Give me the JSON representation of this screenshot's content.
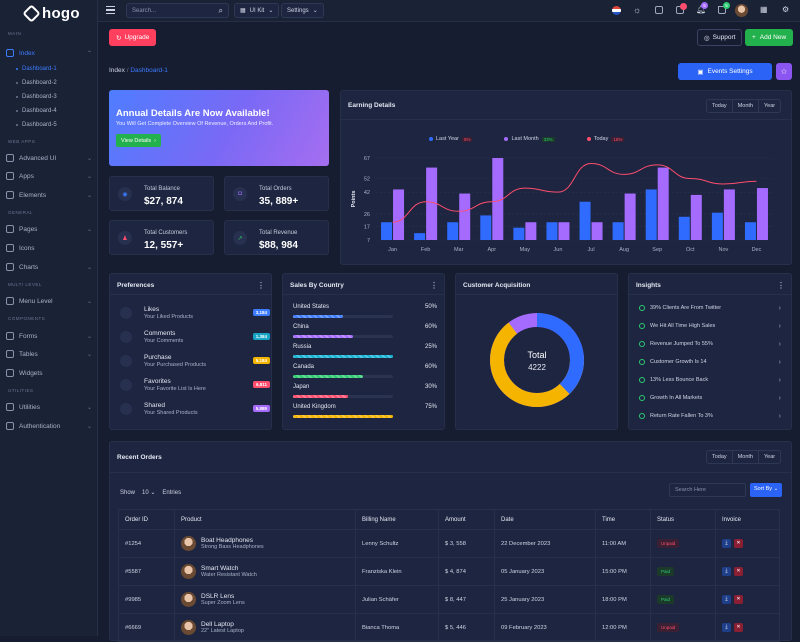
{
  "brand": "hogo",
  "sidebar": {
    "sections": [
      {
        "label": "MAIN"
      },
      {
        "label": "WEB APPS"
      },
      {
        "label": "GENERAL"
      },
      {
        "label": "MULTI LEVEL"
      },
      {
        "label": "COMPONENTS"
      },
      {
        "label": "UTILITIES"
      }
    ],
    "items": [
      {
        "label": "Index",
        "icon": "monitor-icon"
      },
      {
        "label": "Advanced UI",
        "icon": "layers-icon"
      },
      {
        "label": "Apps",
        "icon": "apps-icon"
      },
      {
        "label": "Elements",
        "icon": "box-icon"
      },
      {
        "label": "Pages",
        "icon": "file-icon"
      },
      {
        "label": "Icons",
        "icon": "grid-icon"
      },
      {
        "label": "Charts",
        "icon": "chart-icon"
      },
      {
        "label": "Menu Level",
        "icon": "menu-icon"
      },
      {
        "label": "Forms",
        "icon": "form-icon"
      },
      {
        "label": "Tables",
        "icon": "table-icon"
      },
      {
        "label": "Widgets",
        "icon": "widget-icon"
      },
      {
        "label": "Utilities",
        "icon": "tool-icon"
      },
      {
        "label": "Authentication",
        "icon": "lock-icon"
      }
    ],
    "subitems": [
      "Dashboard-1",
      "Dashboard-2",
      "Dashboard-3",
      "Dashboard-4",
      "Dashboard-5"
    ]
  },
  "topbar": {
    "search_placeholder": "Search...",
    "uikit": "UI Kit",
    "settings": "Settings",
    "notif_count": "5",
    "cart_count": "5"
  },
  "actions": {
    "upgrade": "Upgrade",
    "support": "Support",
    "add_new": "Add New",
    "events": "Events Settings"
  },
  "breadcrumb": {
    "root": "Index",
    "current": "Dashboard-1"
  },
  "banner": {
    "title": "Annual Details Are Now Available!",
    "subtitle": "You Will Get Complete Overview Of Revenue, Orders And Profit.",
    "button": "View Details"
  },
  "stats": [
    {
      "label": "Total Balance",
      "value": "$27, 874",
      "color": "#3d7bff"
    },
    {
      "label": "Total Orders",
      "value": "35, 889+",
      "color": "#a56bff"
    },
    {
      "label": "Total Customers",
      "value": "12, 557+",
      "color": "#ff4d6d"
    },
    {
      "label": "Total Revenue",
      "value": "$88, 984",
      "color": "#2ecc71"
    }
  ],
  "earning": {
    "title": "Earning Details",
    "tabs": [
      "Today",
      "Month",
      "Year"
    ],
    "legend": [
      {
        "label": "Last Year",
        "pct": "5%",
        "color": "#2f6bff"
      },
      {
        "label": "Last Month",
        "pct": "33%",
        "color": "#a56bff"
      },
      {
        "label": "Today",
        "pct": "15%",
        "color": "#ff4d6d"
      }
    ]
  },
  "chart_data": {
    "type": "bar",
    "ylabel": "Points",
    "yticks": [
      7,
      17,
      26,
      42,
      52,
      67
    ],
    "ylim": [
      7,
      67
    ],
    "categories": [
      "Jan",
      "Feb",
      "Mar",
      "Apr",
      "May",
      "Jun",
      "Jul",
      "Aug",
      "Sep",
      "Oct",
      "Nov",
      "Dec"
    ],
    "series": [
      {
        "name": "Last Year",
        "type": "bar",
        "color": "#2f6bff",
        "values": [
          20,
          12,
          20,
          25,
          16,
          20,
          35,
          20,
          44,
          24,
          27,
          20
        ]
      },
      {
        "name": "Last Month",
        "type": "bar",
        "color": "#a56bff",
        "values": [
          44,
          60,
          41,
          67,
          20,
          20,
          20,
          41,
          60,
          40,
          44,
          45
        ]
      },
      {
        "name": "Today",
        "type": "line",
        "color": "#ff4d6d",
        "values": [
          20,
          35,
          28,
          35,
          45,
          42,
          63,
          55,
          62,
          52,
          48,
          50
        ]
      }
    ]
  },
  "preferences": {
    "title": "Preferences",
    "items": [
      {
        "title": "Likes",
        "sub": "Your Liked Products",
        "badge": "3,184",
        "color": "#3d7bff"
      },
      {
        "title": "Comments",
        "sub": "Your Comments",
        "badge": "1,384",
        "color": "#16a3c4"
      },
      {
        "title": "Purchase",
        "sub": "Your Purchased Products",
        "badge": "5,184",
        "color": "#f5b400"
      },
      {
        "title": "Favorites",
        "sub": "Your Favorite List Is Here",
        "badge": "6,811",
        "color": "#ff4d6d"
      },
      {
        "title": "Shared",
        "sub": "Your Shared Products",
        "badge": "5,889",
        "color": "#a56bff"
      }
    ]
  },
  "countries": {
    "title": "Sales By Country",
    "items": [
      {
        "name": "United States",
        "pct": "50%",
        "value": 50,
        "color": "#3d7bff"
      },
      {
        "name": "China",
        "pct": "60%",
        "value": 60,
        "color": "#a56bff"
      },
      {
        "name": "Russia",
        "pct": "25%",
        "value": 25,
        "color": "#16b3d4"
      },
      {
        "name": "Canada",
        "pct": "60%",
        "value": 60,
        "color": "#2ecc71"
      },
      {
        "name": "Japan",
        "pct": "30%",
        "value": 30,
        "color": "#ff4d6d"
      },
      {
        "name": "United Kingdom",
        "pct": "75%",
        "value": 75,
        "color": "#f5b400"
      }
    ]
  },
  "acquisition": {
    "title": "Customer Acquisition",
    "total_label": "Total",
    "total_value": "4222",
    "segments": [
      {
        "value": 38,
        "color": "#2f6bff"
      },
      {
        "value": 28,
        "color": "#f5b400"
      },
      {
        "value": 34,
        "color": "#a56bff"
      }
    ]
  },
  "insights": {
    "title": "Insights",
    "items": [
      {
        "text": "39% Clients Are From Twitter"
      },
      {
        "text": "We Hit All Time High Sales"
      },
      {
        "text": "Revenue Jumped To 55%"
      },
      {
        "text": "Customer Growth Is 14"
      },
      {
        "text": "13% Less Bounce Back"
      },
      {
        "text": "Growth In All Markets"
      },
      {
        "text": "Return Rate Fallen To 3%"
      }
    ]
  },
  "orders": {
    "title": "Recent Orders",
    "tabs": [
      "Today",
      "Month",
      "Year"
    ],
    "show": "Show",
    "entries_value": "10",
    "entries": "Entries",
    "search_placeholder": "Search Here",
    "sort": "Sort By",
    "columns": [
      "Order ID",
      "Product",
      "Billing Name",
      "Amount",
      "Date",
      "Time",
      "Status",
      "Invoice"
    ],
    "rows": [
      {
        "id": "#1254",
        "product": "Boat Headphones",
        "desc": "Strong Bass Headphones",
        "billing": "Lenny Schultz",
        "amount": "$ 3, 558",
        "date": "22 December 2023",
        "time": "11:00 AM",
        "status": "Unpaid"
      },
      {
        "id": "#5587",
        "product": "Smart Watch",
        "desc": "Water Resistant Watch",
        "billing": "Franziska Klein",
        "amount": "$ 4, 874",
        "date": "05 January 2023",
        "time": "15:00 PM",
        "status": "Paid"
      },
      {
        "id": "#9985",
        "product": "DSLR Lens",
        "desc": "Super Zoom Lens",
        "billing": "Julian Schäfer",
        "amount": "$ 8, 447",
        "date": "25 January 2023",
        "time": "18:00 PM",
        "status": "Paid"
      },
      {
        "id": "#6669",
        "product": "Dell Laptop",
        "desc": "22\" Latest Laptop",
        "billing": "Bianca Thoma",
        "amount": "$ 5, 446",
        "date": "09 February 2023",
        "time": "12:00 PM",
        "status": "Unpaid"
      }
    ]
  }
}
